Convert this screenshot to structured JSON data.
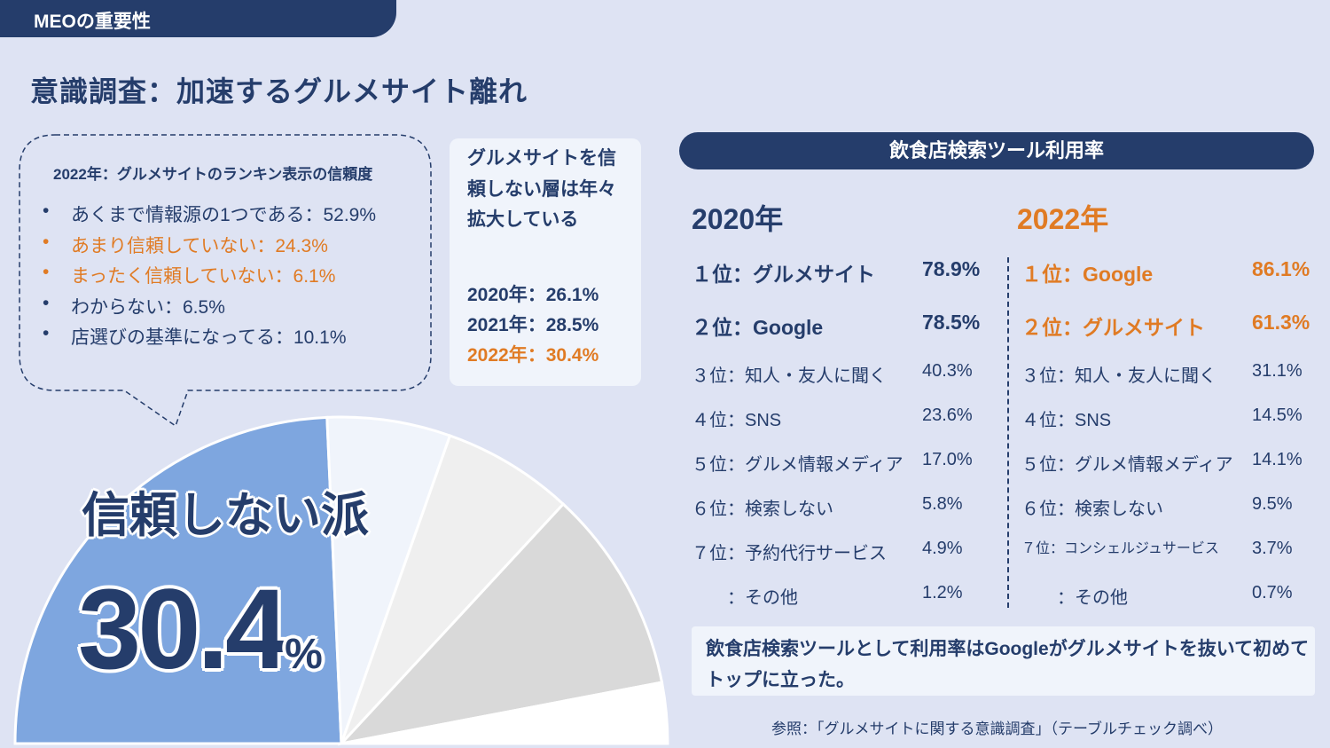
{
  "header": {
    "tag": "MEOの重要性",
    "title": "意識調査：加速するグルメサイト離れ"
  },
  "bubble": {
    "title": "2022年：グルメサイトのランキン表示の信頼度",
    "items": [
      {
        "label": "あくまで情報源の1つである：52.9%",
        "highlight": false
      },
      {
        "label": "あまり信頼していない：24.3%",
        "highlight": true
      },
      {
        "label": "まったく信頼していない：6.1%",
        "highlight": true
      },
      {
        "label": "わからない：6.5%",
        "highlight": false
      },
      {
        "label": "店選びの基準になってる：10.1%",
        "highlight": false
      }
    ],
    "bullet": "•"
  },
  "trend": {
    "heading": "グルメサイトを信頼しない層は年々拡大している",
    "years": [
      "2020年：26.1%",
      "2021年：28.5%",
      "2022年：30.4%"
    ]
  },
  "callout": {
    "label": "信頼しない派",
    "value": "30.4",
    "unit": "%"
  },
  "chart_data": {
    "type": "pie",
    "title": "2022年：グルメサイトのランキン表示の信頼度",
    "slices": [
      {
        "name": "あまり信頼していない",
        "value": 24.3,
        "color": "#7ea6df"
      },
      {
        "name": "まったく信頼していない",
        "value": 6.1,
        "color": "#f0f4fb"
      },
      {
        "name": "わからない",
        "value": 6.5,
        "color": "#efefef"
      },
      {
        "name": "店選びの基準になってる",
        "value": 10.1,
        "color": "#d9d9d9"
      },
      {
        "name": "あくまで情報源の1つである",
        "value": 52.9,
        "color": "#ffffff"
      }
    ]
  },
  "usage": {
    "heading": "飲食店検索ツール利用率",
    "y2020": {
      "year": "2020年",
      "rows": [
        [
          "１位：グルメサイト",
          "78.9%"
        ],
        [
          "２位：Google",
          "78.5%"
        ],
        [
          "３位：知人・友人に聞く",
          "40.3%"
        ],
        [
          "４位：SNS",
          "23.6%"
        ],
        [
          "５位：グルメ情報メディア",
          "17.0%"
        ],
        [
          "６位：検索しない",
          "5.8%"
        ],
        [
          "７位：予約代行サービス",
          "4.9%"
        ],
        [
          "　　：その他",
          "1.2%"
        ]
      ]
    },
    "y2022": {
      "year": "2022年",
      "rows": [
        [
          "１位：Google",
          "86.1%"
        ],
        [
          "２位：グルメサイト",
          "61.3%"
        ],
        [
          "３位：知人・友人に聞く",
          "31.1%"
        ],
        [
          "４位：SNS",
          "14.5%"
        ],
        [
          "５位：グルメ情報メディア",
          "14.1%"
        ],
        [
          "６位：検索しない",
          "9.5%"
        ],
        [
          "７位：コンシェルジュサービス",
          "3.7%"
        ],
        [
          "　　：その他",
          "0.7%"
        ]
      ]
    },
    "note": "飲食店検索ツールとして利用率はGoogleがグルメサイトを抜いて初めてトップに立った。",
    "source": "参照：「グルメサイトに関する意識調査」（テーブルチェック調べ）"
  },
  "colors": {
    "navy": "#253d6b",
    "orange": "#e07b24",
    "bg": "#dee3f3"
  }
}
